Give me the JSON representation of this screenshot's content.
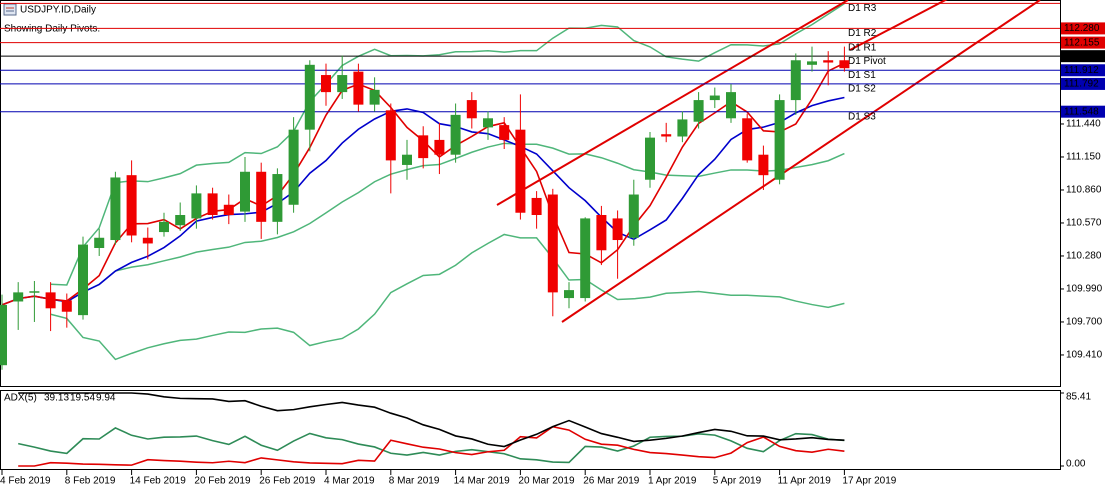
{
  "chart_data": {
    "type": "candlestick",
    "title": "USDJPY.ID,Daily",
    "subtitle": "Showing Daily Pivots.",
    "categories": [
      "4 Feb 2019",
      null,
      null,
      null,
      "8 Feb 2019",
      null,
      null,
      null,
      "14 Feb 2019",
      null,
      null,
      null,
      "20 Feb 2019",
      null,
      null,
      null,
      "26 Feb 2019",
      null,
      null,
      null,
      "4 Mar 2019",
      null,
      null,
      null,
      "8 Mar 2019",
      null,
      null,
      null,
      "14 Mar 2019",
      null,
      null,
      null,
      "20 Mar 2019",
      null,
      null,
      null,
      "26 Mar 2019",
      null,
      null,
      null,
      "1 Apr 2019",
      null,
      null,
      null,
      "5 Apr 2019",
      null,
      null,
      null,
      "11 Apr 2019",
      null,
      null,
      null,
      "17 Apr 2019"
    ],
    "open": [
      109.32,
      109.88,
      109.96,
      109.96,
      109.89,
      109.76,
      110.35,
      110.42,
      110.99,
      110.44,
      110.49,
      110.55,
      110.61,
      110.83,
      110.73,
      110.67,
      111.02,
      110.58,
      110.73,
      111.39,
      111.87,
      111.72,
      111.9,
      111.61,
      111.56,
      111.08,
      111.34,
      111.3,
      111.17,
      111.65,
      111.41,
      111.43,
      111.39,
      110.79,
      110.82,
      109.91,
      109.91,
      110.64,
      110.61,
      110.44,
      110.95,
      111.35,
      111.33,
      111.46,
      111.65,
      111.49,
      111.49,
      111.17,
      110.95,
      111.65,
      111.96,
      112.0,
      112.0
    ],
    "high": [
      109.94,
      110.05,
      110.06,
      110.05,
      109.95,
      110.45,
      110.52,
      111.02,
      111.12,
      110.53,
      110.66,
      110.75,
      110.9,
      110.88,
      110.82,
      111.15,
      111.1,
      111.05,
      111.5,
      112.0,
      111.97,
      112.04,
      111.97,
      111.85,
      111.62,
      111.3,
      111.42,
      111.45,
      111.62,
      111.72,
      111.55,
      111.5,
      111.7,
      110.85,
      110.87,
      110.05,
      110.62,
      110.72,
      110.68,
      110.95,
      111.37,
      111.45,
      111.55,
      111.72,
      111.76,
      111.79,
      111.53,
      111.25,
      111.7,
      112.06,
      112.12,
      112.08,
      112.12
    ],
    "low": [
      109.28,
      109.63,
      109.7,
      109.62,
      109.65,
      109.72,
      110.28,
      110.38,
      110.4,
      110.25,
      110.45,
      110.5,
      110.52,
      110.6,
      110.56,
      110.58,
      110.43,
      110.47,
      110.66,
      111.2,
      111.6,
      111.66,
      111.55,
      111.55,
      110.83,
      110.95,
      111.05,
      111.0,
      111.1,
      111.4,
      111.3,
      111.22,
      110.6,
      110.52,
      109.75,
      109.82,
      109.88,
      110.2,
      110.08,
      110.37,
      110.88,
      111.28,
      111.28,
      111.4,
      111.58,
      111.45,
      111.1,
      110.86,
      110.91,
      111.52,
      111.9,
      111.78,
      111.9
    ],
    "close": [
      109.85,
      109.96,
      109.97,
      109.82,
      109.79,
      110.38,
      110.44,
      110.97,
      110.46,
      110.39,
      110.58,
      110.64,
      110.83,
      110.64,
      110.64,
      111.02,
      110.58,
      111.0,
      111.39,
      111.96,
      111.72,
      111.87,
      111.61,
      111.74,
      111.12,
      111.17,
      111.14,
      111.17,
      111.52,
      111.49,
      111.49,
      111.3,
      110.66,
      110.64,
      109.96,
      109.98,
      110.61,
      110.33,
      110.42,
      110.82,
      111.32,
      111.33,
      111.48,
      111.65,
      111.69,
      111.72,
      111.12,
      110.99,
      111.65,
      112.0,
      111.99,
      111.98,
      111.93
    ],
    "up_color": "#2f9a35",
    "down_color": "#f00000",
    "ylim": [
      109.146,
      112.512
    ],
    "yticks": [
      {
        "value": 111.44,
        "label": "111.440"
      },
      {
        "value": 111.15,
        "label": "111.150"
      },
      {
        "value": 110.86,
        "label": "110.860"
      },
      {
        "value": 110.57,
        "label": "110.570"
      },
      {
        "value": 110.28,
        "label": "110.280"
      },
      {
        "value": 109.99,
        "label": "109.990"
      },
      {
        "value": 109.7,
        "label": "109.700"
      },
      {
        "value": 109.41,
        "label": "109.410"
      }
    ],
    "pivots": [
      {
        "name": "D1 R3",
        "value": 112.5,
        "color": "#e00000"
      },
      {
        "name": "D1 R2",
        "value": 112.28,
        "label": "112.280",
        "color": "#e00000"
      },
      {
        "name": "D1 R1",
        "value": 112.155,
        "label": "112.155",
        "color": "#e00000"
      },
      {
        "name": "D1 Pivot",
        "value": 112.036,
        "label": "112.036",
        "color": "#000000"
      },
      {
        "name": "D1 S1",
        "value": 111.912,
        "label": "111.912",
        "color": "#0000b0"
      },
      {
        "name": "D1 S2",
        "value": 111.792,
        "label": "111.792",
        "color": "#0000b0"
      },
      {
        "name": "D1 S3",
        "value": 111.548,
        "label": "111.548",
        "color": "#0000b0"
      }
    ],
    "adx": {
      "name": "ADX(5)",
      "values": [
        39.13,
        19.54,
        9.94
      ],
      "ylim": [
        0,
        85.41
      ],
      "yticks": [
        85.41,
        {
          "value": 0,
          "label": "0.00"
        }
      ]
    }
  }
}
